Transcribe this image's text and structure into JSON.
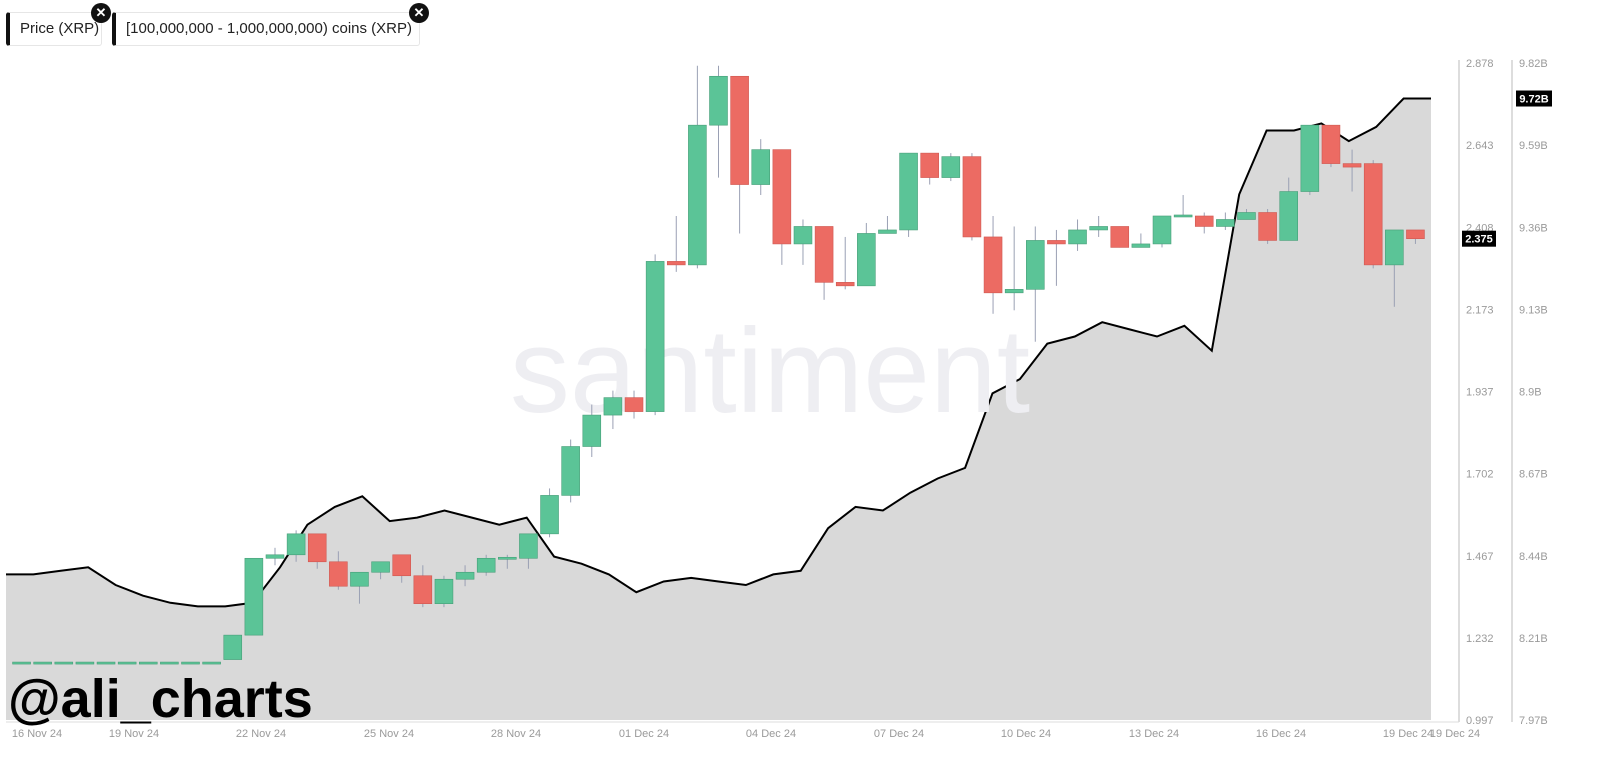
{
  "chips": [
    {
      "label": "Price (XRP)"
    },
    {
      "label": "[100,000,000 - 1,000,000,000) coins (XRP)"
    }
  ],
  "watermark": "santiment",
  "handle": "@ali_charts",
  "colors": {
    "up": "#5bc497",
    "down": "#ec6b63",
    "area": "#d9d9d9",
    "line": "#000000",
    "up_dark": "#479e78",
    "down_dark": "#cf5851"
  },
  "chart_data": {
    "type": "candlestick+area",
    "x_tick_labels": [
      "16 Nov 24",
      "19 Nov 24",
      "22 Nov 24",
      "25 Nov 24",
      "28 Nov 24",
      "01 Dec 24",
      "04 Dec 24",
      "07 Dec 24",
      "10 Dec 24",
      "13 Dec 24",
      "16 Dec 24",
      "19 Dec 24",
      "19 Dec 24"
    ],
    "price_axis": {
      "ticks": [
        "2.878",
        "2.643",
        "2.408",
        "2.173",
        "1.937",
        "1.702",
        "1.467",
        "1.232",
        "0.997"
      ],
      "range": [
        0.997,
        2.878
      ],
      "current_label": "2.375"
    },
    "supply_axis": {
      "ticks": [
        "9.82B",
        "9.59B",
        "9.36B",
        "9.13B",
        "8.9B",
        "8.67B",
        "8.44B",
        "8.21B",
        "7.97B"
      ],
      "range": [
        7.97,
        9.82
      ],
      "current_label": "9.72B"
    },
    "series": [
      {
        "name": "Price (XRP)",
        "type": "candlestick",
        "candles": [
          [
            1.16,
            1.16,
            1.16,
            1.16
          ],
          [
            1.16,
            1.16,
            1.16,
            1.16
          ],
          [
            1.16,
            1.16,
            1.16,
            1.16
          ],
          [
            1.16,
            1.16,
            1.16,
            1.16
          ],
          [
            1.16,
            1.16,
            1.16,
            1.16
          ],
          [
            1.16,
            1.16,
            1.16,
            1.16
          ],
          [
            1.16,
            1.16,
            1.16,
            1.16
          ],
          [
            1.16,
            1.16,
            1.16,
            1.16
          ],
          [
            1.16,
            1.16,
            1.16,
            1.16
          ],
          [
            1.16,
            1.16,
            1.16,
            1.16
          ],
          [
            1.17,
            1.24,
            1.17,
            1.24
          ],
          [
            1.24,
            1.46,
            1.24,
            1.46
          ],
          [
            1.46,
            1.49,
            1.44,
            1.47
          ],
          [
            1.47,
            1.54,
            1.45,
            1.53
          ],
          [
            1.53,
            1.53,
            1.43,
            1.45
          ],
          [
            1.45,
            1.48,
            1.37,
            1.38
          ],
          [
            1.38,
            1.42,
            1.33,
            1.42
          ],
          [
            1.42,
            1.45,
            1.4,
            1.45
          ],
          [
            1.47,
            1.47,
            1.39,
            1.41
          ],
          [
            1.41,
            1.44,
            1.32,
            1.33
          ],
          [
            1.33,
            1.41,
            1.32,
            1.4
          ],
          [
            1.4,
            1.44,
            1.38,
            1.42
          ],
          [
            1.42,
            1.47,
            1.41,
            1.46
          ],
          [
            1.46,
            1.47,
            1.43,
            1.46
          ],
          [
            1.46,
            1.53,
            1.43,
            1.53
          ],
          [
            1.53,
            1.66,
            1.52,
            1.64
          ],
          [
            1.64,
            1.8,
            1.62,
            1.78
          ],
          [
            1.78,
            1.9,
            1.75,
            1.87
          ],
          [
            1.87,
            1.94,
            1.83,
            1.92
          ],
          [
            1.92,
            1.94,
            1.86,
            1.88
          ],
          [
            1.88,
            2.33,
            1.87,
            2.31
          ],
          [
            2.31,
            2.44,
            2.28,
            2.3
          ],
          [
            2.3,
            2.87,
            2.29,
            2.7
          ],
          [
            2.7,
            2.87,
            2.55,
            2.84
          ],
          [
            2.84,
            2.84,
            2.39,
            2.53
          ],
          [
            2.53,
            2.66,
            2.5,
            2.63
          ],
          [
            2.63,
            2.63,
            2.3,
            2.36
          ],
          [
            2.36,
            2.43,
            2.3,
            2.41
          ],
          [
            2.41,
            2.41,
            2.2,
            2.25
          ],
          [
            2.25,
            2.38,
            2.23,
            2.24
          ],
          [
            2.24,
            2.42,
            2.24,
            2.39
          ],
          [
            2.39,
            2.44,
            2.39,
            2.4
          ],
          [
            2.4,
            2.62,
            2.38,
            2.62
          ],
          [
            2.62,
            2.62,
            2.53,
            2.55
          ],
          [
            2.55,
            2.62,
            2.54,
            2.61
          ],
          [
            2.61,
            2.62,
            2.37,
            2.38
          ],
          [
            2.38,
            2.44,
            2.16,
            2.22
          ],
          [
            2.22,
            2.41,
            2.17,
            2.23
          ],
          [
            2.23,
            2.41,
            2.08,
            2.37
          ],
          [
            2.37,
            2.4,
            2.24,
            2.36
          ],
          [
            2.36,
            2.43,
            2.34,
            2.4
          ],
          [
            2.4,
            2.44,
            2.38,
            2.41
          ],
          [
            2.41,
            2.41,
            2.35,
            2.35
          ],
          [
            2.35,
            2.39,
            2.35,
            2.36
          ],
          [
            2.36,
            2.44,
            2.35,
            2.44
          ],
          [
            2.44,
            2.5,
            2.44,
            2.44
          ],
          [
            2.44,
            2.45,
            2.39,
            2.41
          ],
          [
            2.41,
            2.45,
            2.4,
            2.43
          ],
          [
            2.43,
            2.46,
            2.43,
            2.45
          ],
          [
            2.45,
            2.46,
            2.36,
            2.37
          ],
          [
            2.37,
            2.55,
            2.37,
            2.51
          ],
          [
            2.51,
            2.7,
            2.5,
            2.7
          ],
          [
            2.7,
            2.7,
            2.58,
            2.59
          ],
          [
            2.59,
            2.63,
            2.51,
            2.58
          ],
          [
            2.59,
            2.6,
            2.29,
            2.3
          ],
          [
            2.3,
            2.4,
            2.18,
            2.4
          ],
          [
            2.4,
            2.4,
            2.36,
            2.375
          ]
        ]
      },
      {
        "name": "[100,000,000 - 1,000,000,000) coins (XRP)",
        "type": "area",
        "values_billion": [
          8.38,
          8.38,
          8.39,
          8.4,
          8.35,
          8.32,
          8.3,
          8.29,
          8.29,
          8.3,
          8.4,
          8.52,
          8.57,
          8.6,
          8.53,
          8.54,
          8.56,
          8.54,
          8.52,
          8.54,
          8.43,
          8.41,
          8.38,
          8.33,
          8.36,
          8.37,
          8.36,
          8.35,
          8.38,
          8.39,
          8.51,
          8.57,
          8.56,
          8.61,
          8.65,
          8.68,
          8.89,
          8.93,
          9.03,
          9.05,
          9.09,
          9.07,
          9.05,
          9.08,
          9.01,
          9.45,
          9.63,
          9.63,
          9.65,
          9.6,
          9.64,
          9.72,
          9.72
        ]
      }
    ]
  }
}
